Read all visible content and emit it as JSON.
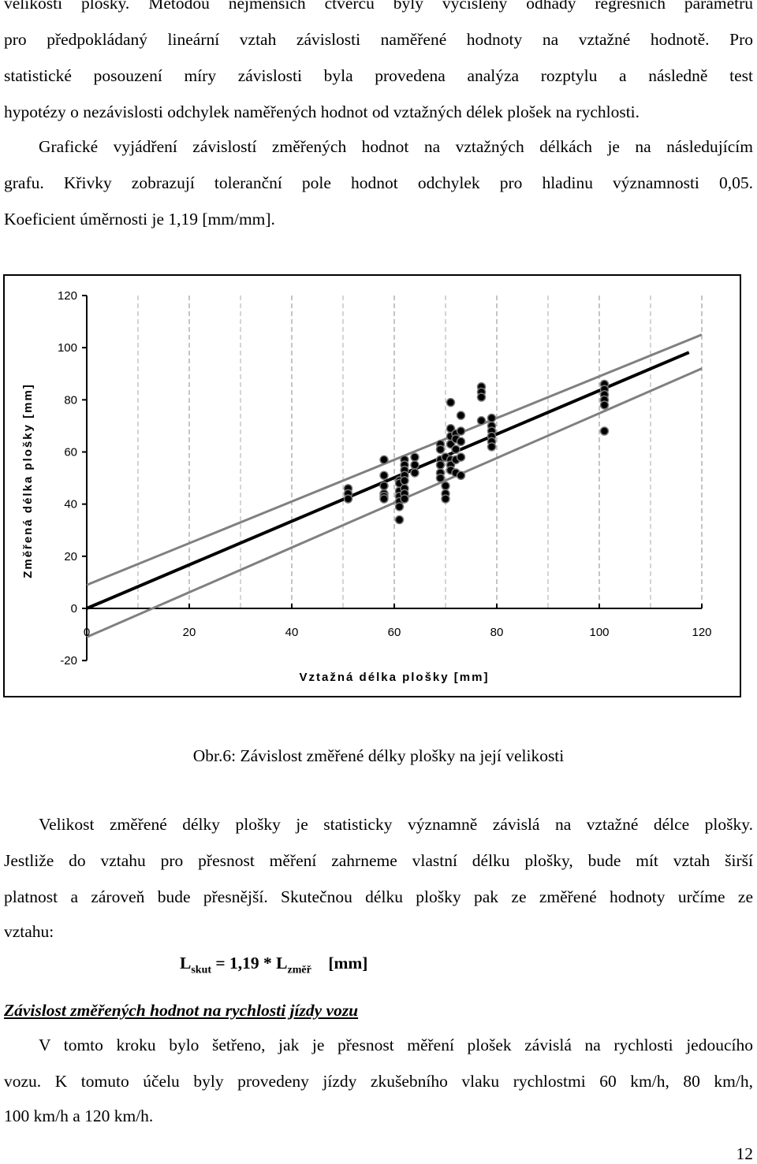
{
  "top_paragraph": {
    "lines": [
      "velikosti plošky. Metodou nejmenších čtverců byly vyčísleny odhady regresních parametrů",
      "pro předpokládaný lineární vztah závislosti naměřené hodnoty na vztažné hodnotě. Pro",
      "statistické posouzení míry závislosti byla provedena analýza rozptylu a následně test",
      "hypotézy o nezávislosti odchylek naměřených hodnot od vztažných délek plošek na rychlosti."
    ]
  },
  "second_paragraph": {
    "lines": [
      "Grafické vyjádření závislostí změřených hodnot na vztažných délkách je na následujícím",
      "grafu. Křivky zobrazují toleranční pole hodnot odchylek pro hladinu významnosti 0,05.",
      "Koeficient úměrnosti je 1,19 [mm/mm]."
    ]
  },
  "chart_data": {
    "type": "scatter",
    "xlabel": "Vztažná délka plošky [mm]",
    "ylabel": "Změřená délka plošky [mm]",
    "xlim": [
      0,
      120
    ],
    "ylim": [
      -20,
      120
    ],
    "xticks": [
      "0",
      "20",
      "40",
      "60",
      "80",
      "100",
      "120"
    ],
    "yticks": [
      "-20",
      "0",
      "20",
      "40",
      "60",
      "80",
      "100",
      "120"
    ],
    "grid": "dashed vertical",
    "legend": "none",
    "points": [
      [
        51,
        46
      ],
      [
        51,
        44
      ],
      [
        51,
        42
      ],
      [
        58,
        57
      ],
      [
        58,
        51
      ],
      [
        58,
        47
      ],
      [
        58,
        44
      ],
      [
        58,
        43
      ],
      [
        58,
        42
      ],
      [
        61,
        49
      ],
      [
        61,
        48
      ],
      [
        61,
        45
      ],
      [
        61,
        43
      ],
      [
        61,
        41
      ],
      [
        61,
        39
      ],
      [
        61,
        34
      ],
      [
        62,
        57
      ],
      [
        62,
        55
      ],
      [
        62,
        53
      ],
      [
        62,
        51
      ],
      [
        62,
        49
      ],
      [
        62,
        46
      ],
      [
        62,
        44
      ],
      [
        62,
        42
      ],
      [
        64,
        58
      ],
      [
        64,
        55
      ],
      [
        64,
        52
      ],
      [
        69,
        63
      ],
      [
        69,
        61
      ],
      [
        69,
        57
      ],
      [
        69,
        55
      ],
      [
        69,
        52
      ],
      [
        69,
        50
      ],
      [
        70,
        58
      ],
      [
        70,
        47
      ],
      [
        70,
        44
      ],
      [
        70,
        42
      ],
      [
        71,
        79
      ],
      [
        71,
        69
      ],
      [
        71,
        66
      ],
      [
        71,
        63
      ],
      [
        71,
        57
      ],
      [
        71,
        55
      ],
      [
        71,
        53
      ],
      [
        72,
        67
      ],
      [
        72,
        65
      ],
      [
        72,
        61
      ],
      [
        72,
        57
      ],
      [
        72,
        52
      ],
      [
        73,
        68
      ],
      [
        73,
        64
      ],
      [
        73,
        58
      ],
      [
        73,
        51
      ],
      [
        73,
        74
      ],
      [
        77,
        85
      ],
      [
        77,
        83
      ],
      [
        77,
        81
      ],
      [
        77,
        72
      ],
      [
        79,
        73
      ],
      [
        79,
        70
      ],
      [
        79,
        68
      ],
      [
        79,
        66
      ],
      [
        79,
        64
      ],
      [
        79,
        62
      ],
      [
        101,
        86
      ],
      [
        101,
        84
      ],
      [
        101,
        82
      ],
      [
        101,
        80
      ],
      [
        101,
        78
      ],
      [
        101,
        68
      ]
    ],
    "regression": {
      "slope": 1.19,
      "intercept": 0
    },
    "tolerance_lines": [
      {
        "x": [
          0,
          120
        ],
        "y": [
          9,
          105
        ]
      },
      {
        "x": [
          0,
          120
        ],
        "y": [
          -11,
          92
        ]
      }
    ],
    "colors": {
      "points": "#000000",
      "regression": "#000000",
      "tolerance": "#808080"
    }
  },
  "caption": "Obr.6: Závislost změřené délky plošky na její velikosti",
  "third_paragraph": {
    "lines": [
      "Velikost změřené délky plošky je statisticky významně závislá na vztažné délce plošky.",
      "Jestliže do vztahu pro přesnost měření zahrneme vlastní délku plošky, bude mít vztah širší",
      "platnost a zároveň bude přesnější. Skutečnou délku plošky pak ze změřené hodnoty určíme ze",
      "vztahu:"
    ]
  },
  "formula": {
    "lhs": "L",
    "lhs_sub": "skut",
    "middle": " = 1,19 * L",
    "rhs_sub": "změř",
    "unit": "    [mm]"
  },
  "heading": "Závislost změřených hodnot na rychlosti jízdy vozu",
  "fourth_paragraph": {
    "lines": [
      "V tomto kroku bylo šetřeno, jak je přesnost měření plošek závislá na rychlosti jedoucího",
      "vozu. K tomuto účelu byly provedeny jízdy zkušebního vlaku rychlostmi 60 km/h, 80 km/h,",
      "100 km/h a 120 km/h."
    ]
  },
  "page_number": "12"
}
